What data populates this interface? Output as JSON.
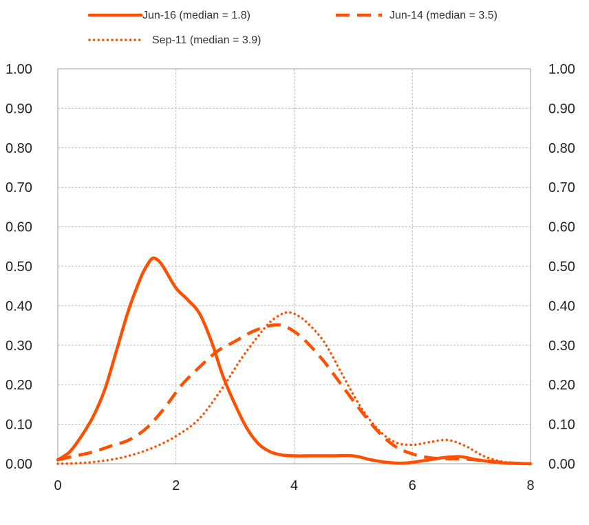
{
  "chart_data": {
    "type": "line",
    "title": "",
    "xlabel": "",
    "ylabel": "",
    "xlim": [
      0,
      8
    ],
    "ylim": [
      0,
      1
    ],
    "x_ticks": [
      "0",
      "2",
      "4",
      "6",
      "8"
    ],
    "y_ticks": [
      "0.00",
      "0.10",
      "0.20",
      "0.30",
      "0.40",
      "0.50",
      "0.60",
      "0.70",
      "0.80",
      "0.90",
      "1.00"
    ],
    "grid": true,
    "legend_position": "top",
    "series": [
      {
        "name": "Jun-16 (median = 1.8)",
        "style": "solid",
        "color": "#ff4f00",
        "x": [
          0,
          0.2,
          0.4,
          0.6,
          0.8,
          1.0,
          1.2,
          1.4,
          1.5,
          1.6,
          1.7,
          1.8,
          2.0,
          2.2,
          2.4,
          2.6,
          2.8,
          3.0,
          3.2,
          3.4,
          3.6,
          3.8,
          4.0,
          4.3,
          4.6,
          5.0,
          5.3,
          5.6,
          5.9,
          6.2,
          6.5,
          6.8,
          7.1,
          7.4,
          7.7,
          8.0
        ],
        "y": [
          0.01,
          0.03,
          0.07,
          0.12,
          0.19,
          0.29,
          0.39,
          0.47,
          0.5,
          0.52,
          0.515,
          0.495,
          0.445,
          0.415,
          0.38,
          0.31,
          0.22,
          0.15,
          0.09,
          0.05,
          0.03,
          0.022,
          0.02,
          0.02,
          0.02,
          0.02,
          0.01,
          0.003,
          0.002,
          0.008,
          0.015,
          0.018,
          0.01,
          0.004,
          0.001,
          0.0
        ]
      },
      {
        "name": "Jun-14 (median = 3.5)",
        "style": "dashed",
        "color": "#ff4f00",
        "x": [
          0,
          0.3,
          0.6,
          0.9,
          1.2,
          1.5,
          1.8,
          2.1,
          2.4,
          2.7,
          3.0,
          3.3,
          3.6,
          3.8,
          4.0,
          4.2,
          4.5,
          4.8,
          5.1,
          5.4,
          5.7,
          6.0,
          6.3,
          6.6,
          6.9,
          7.2,
          7.5,
          7.8,
          8.0
        ],
        "y": [
          0.01,
          0.02,
          0.03,
          0.045,
          0.06,
          0.09,
          0.14,
          0.2,
          0.245,
          0.285,
          0.31,
          0.335,
          0.35,
          0.35,
          0.335,
          0.31,
          0.26,
          0.2,
          0.14,
          0.085,
          0.045,
          0.025,
          0.015,
          0.013,
          0.012,
          0.008,
          0.004,
          0.001,
          0.0
        ]
      },
      {
        "name": "Sep-11 (median = 3.9)",
        "style": "dotted",
        "color": "#ff4f00",
        "x": [
          0,
          0.4,
          0.8,
          1.2,
          1.6,
          2.0,
          2.4,
          2.8,
          3.1,
          3.4,
          3.6,
          3.8,
          3.9,
          4.0,
          4.2,
          4.5,
          4.8,
          5.1,
          5.4,
          5.7,
          6.0,
          6.3,
          6.6,
          6.9,
          7.2,
          7.5,
          7.8,
          8.0
        ],
        "y": [
          0.0,
          0.002,
          0.008,
          0.02,
          0.04,
          0.07,
          0.115,
          0.195,
          0.265,
          0.325,
          0.36,
          0.38,
          0.383,
          0.38,
          0.36,
          0.31,
          0.23,
          0.15,
          0.09,
          0.055,
          0.048,
          0.055,
          0.06,
          0.045,
          0.02,
          0.006,
          0.001,
          0.0
        ]
      }
    ]
  }
}
